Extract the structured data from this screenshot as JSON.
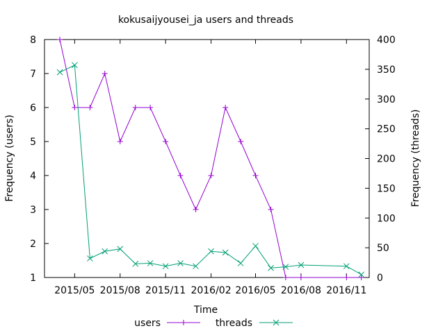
{
  "chart_data": {
    "type": "line",
    "title": "kokusaijyousei_ja users and threads",
    "xlabel": "Time",
    "ylabel": "Frequency (users)",
    "y2label": "Frequency (threads)",
    "xlim": [
      "2015-03-01",
      "2016-12-17"
    ],
    "ylim": [
      1,
      8
    ],
    "y2lim": [
      0,
      400
    ],
    "x_ticks": [
      {
        "date": "2015-05-01",
        "label": "2015/05"
      },
      {
        "date": "2015-08-01",
        "label": "2015/08"
      },
      {
        "date": "2015-11-01",
        "label": "2015/11"
      },
      {
        "date": "2016-02-01",
        "label": "2016/02"
      },
      {
        "date": "2016-05-01",
        "label": "2016/05"
      },
      {
        "date": "2016-08-01",
        "label": "2016/08"
      },
      {
        "date": "2016-11-01",
        "label": "2016/11"
      }
    ],
    "y_ticks": [
      1,
      2,
      3,
      4,
      5,
      6,
      7,
      8
    ],
    "y2_ticks": [
      0,
      50,
      100,
      150,
      200,
      250,
      300,
      350,
      400
    ],
    "legend": "bottom-center",
    "grid": false,
    "series": [
      {
        "name": "users",
        "axis": "left",
        "color": "#9400d3",
        "marker": "plus",
        "x": [
          "2015-04-01",
          "2015-05-01",
          "2015-06-01",
          "2015-07-01",
          "2015-08-01",
          "2015-09-01",
          "2015-10-01",
          "2015-11-01",
          "2015-12-01",
          "2016-01-01",
          "2016-02-01",
          "2016-03-01",
          "2016-04-01",
          "2016-05-01",
          "2016-06-01",
          "2016-07-01",
          "2016-08-01",
          "2016-11-01",
          "2016-12-01"
        ],
        "values": [
          8,
          6,
          6,
          7,
          5,
          6,
          6,
          5,
          4,
          3,
          4,
          6,
          5,
          4,
          3,
          1,
          1,
          1,
          1
        ]
      },
      {
        "name": "threads",
        "axis": "right",
        "color": "#009e73",
        "marker": "cross",
        "x": [
          "2015-04-01",
          "2015-05-01",
          "2015-06-01",
          "2015-07-01",
          "2015-08-01",
          "2015-09-01",
          "2015-10-01",
          "2015-11-01",
          "2015-12-01",
          "2016-01-01",
          "2016-02-01",
          "2016-03-01",
          "2016-04-01",
          "2016-05-01",
          "2016-06-01",
          "2016-07-01",
          "2016-08-01",
          "2016-11-01",
          "2016-12-01"
        ],
        "values": [
          345,
          357,
          32,
          44,
          48,
          23,
          24,
          19,
          24,
          19,
          44,
          42,
          24,
          53,
          16,
          18,
          21,
          19,
          5
        ]
      }
    ]
  }
}
